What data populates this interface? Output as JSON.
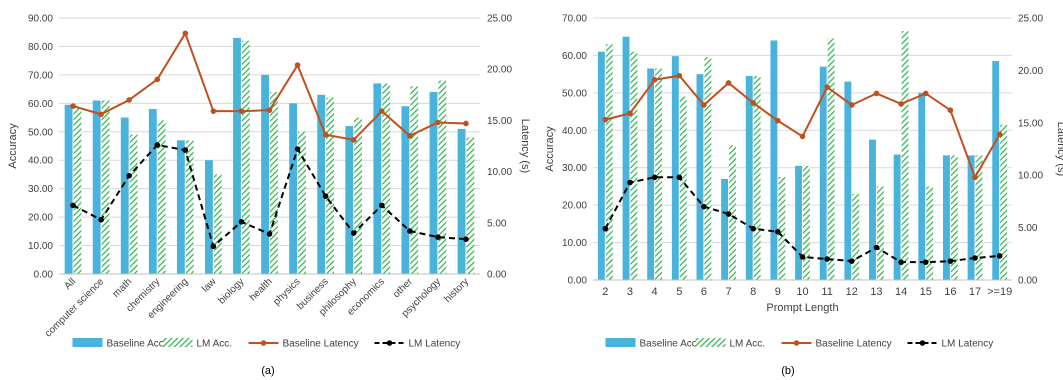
{
  "colors": {
    "baseline_acc": "#4AB3DC",
    "lm_acc": "#2BB34A",
    "baseline_latency": "#C0511E",
    "lm_latency": "#000000",
    "grid": "#D9D9D9"
  },
  "legend": {
    "baseline_acc": "Baseline Acc.",
    "lm_acc": "LM Acc.",
    "baseline_latency": "Baseline Latency",
    "lm_latency": "LM Latency"
  },
  "chart_data": [
    {
      "type": "bar",
      "caption": "(a)",
      "xlabel": "",
      "ylabel": "Accuracy",
      "y2label": "Latency (s)",
      "ylim": [
        0,
        90
      ],
      "ytick_step": 10,
      "y2lim": [
        0,
        25
      ],
      "y2tick_step": 5,
      "tick_decimals": 2,
      "rotate_x_labels": true,
      "legend_position": "bottom",
      "categories": [
        "All",
        "computer science",
        "math",
        "chemistry",
        "engineering",
        "law",
        "biology",
        "health",
        "physics",
        "business",
        "philosophy",
        "economics",
        "other",
        "psychology",
        "history"
      ],
      "series": [
        {
          "name": "Baseline Acc.",
          "kind": "bar",
          "axis": "left",
          "values": [
            59.5,
            61,
            55,
            58,
            47,
            40,
            83,
            70,
            60,
            63,
            52,
            67,
            59,
            64,
            51
          ]
        },
        {
          "name": "LM Acc.",
          "kind": "bar_hatched",
          "axis": "left",
          "values": [
            58.5,
            61,
            49,
            54,
            47,
            35,
            82,
            64,
            50,
            62,
            55,
            67,
            66,
            68,
            48
          ]
        },
        {
          "name": "Baseline Latency",
          "kind": "line",
          "axis": "right",
          "values": [
            16.4,
            15.6,
            17.0,
            19.0,
            23.5,
            15.9,
            15.9,
            16.0,
            20.4,
            13.6,
            13.1,
            15.9,
            13.5,
            14.8,
            14.7
          ]
        },
        {
          "name": "LM Latency",
          "kind": "line_dashed",
          "axis": "right",
          "values": [
            6.7,
            5.3,
            9.6,
            12.6,
            12.1,
            2.7,
            5.1,
            3.9,
            12.2,
            7.6,
            4.0,
            6.7,
            4.2,
            3.6,
            3.4
          ]
        }
      ]
    },
    {
      "type": "bar",
      "caption": "(b)",
      "xlabel": "Prompt Length",
      "ylabel": "Accuracy",
      "y2label": "Latency (s)",
      "ylim": [
        0,
        70
      ],
      "ytick_step": 10,
      "y2lim": [
        0,
        25
      ],
      "y2tick_step": 5,
      "tick_decimals": 2,
      "rotate_x_labels": false,
      "legend_position": "bottom",
      "categories": [
        "2",
        "3",
        "4",
        "5",
        "6",
        "7",
        "8",
        "9",
        "10",
        "11",
        "12",
        "13",
        "14",
        "15",
        "16",
        "17",
        ">=19"
      ],
      "series": [
        {
          "name": "Baseline Acc.",
          "kind": "bar",
          "axis": "left",
          "values": [
            61,
            65,
            56.5,
            59.8,
            55,
            27,
            54.5,
            64,
            30.5,
            57,
            53,
            37.5,
            33.5,
            50,
            33.3,
            33.3,
            58.5
          ]
        },
        {
          "name": "LM Acc.",
          "kind": "bar_hatched",
          "axis": "left",
          "values": [
            63,
            61,
            56.5,
            49,
            59.5,
            36,
            54.5,
            27.5,
            30.5,
            64.5,
            23,
            25,
            66.5,
            25,
            33.3,
            33.3,
            41.5
          ]
        },
        {
          "name": "Baseline Latency",
          "kind": "line",
          "axis": "right",
          "values": [
            15.3,
            15.9,
            19.1,
            19.5,
            16.7,
            18.8,
            16.9,
            15.2,
            13.7,
            18.4,
            16.7,
            17.8,
            16.8,
            17.8,
            16.2,
            9.8,
            13.9
          ]
        },
        {
          "name": "LM Latency",
          "kind": "line_dashed",
          "axis": "right",
          "values": [
            4.9,
            9.3,
            9.8,
            9.8,
            7.0,
            6.3,
            4.9,
            4.6,
            2.2,
            2.0,
            1.8,
            3.1,
            1.7,
            1.7,
            1.8,
            2.1,
            2.3
          ]
        }
      ]
    }
  ]
}
